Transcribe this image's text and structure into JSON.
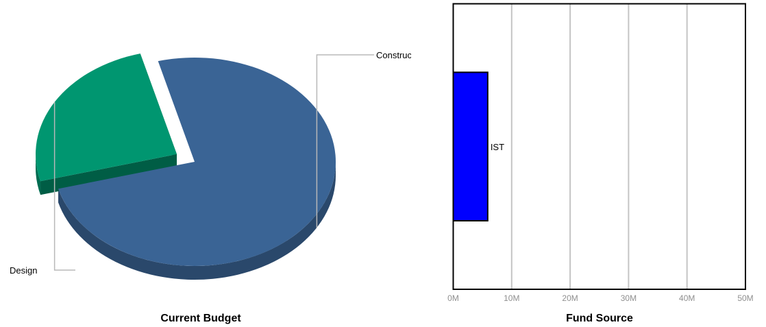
{
  "chart_data": [
    {
      "type": "pie",
      "title": "Current Budget",
      "labels": [
        "Construction",
        "Design"
      ],
      "values": [
        75,
        25
      ],
      "colors": [
        "#3A6495",
        "#009670"
      ],
      "exploded": [
        "Design"
      ],
      "three_d": true
    },
    {
      "type": "bar",
      "orientation": "horizontal",
      "title": "Fund Source",
      "categories": [
        "IST"
      ],
      "values": [
        5900000
      ],
      "color": "#0000FF",
      "xlim": [
        0,
        50000000
      ],
      "ticks": [
        "0M",
        "10M",
        "20M",
        "30M",
        "40M",
        "50M"
      ],
      "grid": true
    }
  ]
}
